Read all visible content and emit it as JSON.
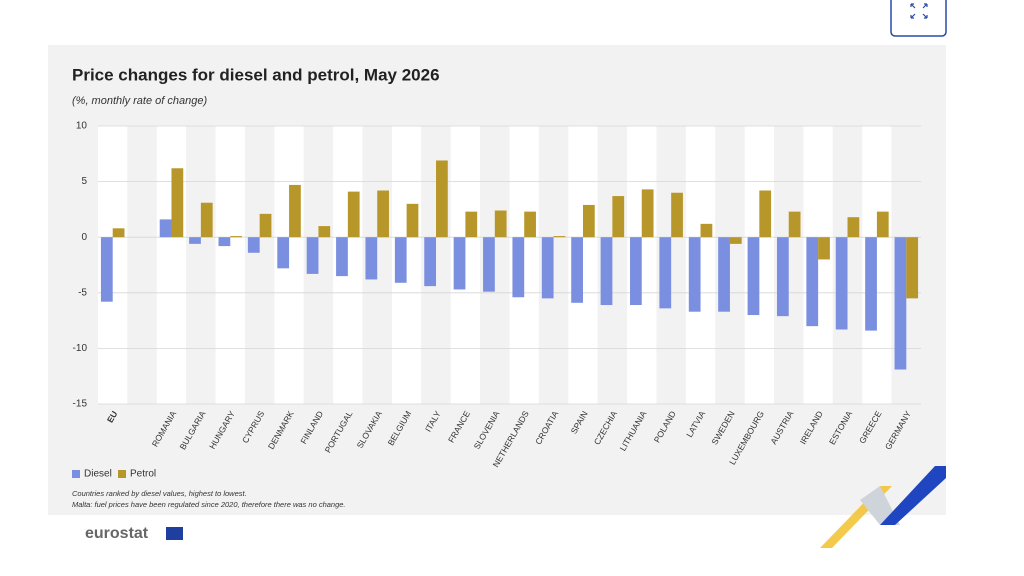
{
  "chart_data": {
    "type": "bar",
    "title": "Price changes for diesel and petrol, May 2026",
    "subtitle": "(%, monthly rate of change)",
    "categories": [
      "EU",
      null,
      "ROMANIA",
      "BULGARIA",
      "HUNGARY",
      "CYPRUS",
      "DENMARK",
      "FINLAND",
      "PORTUGAL",
      "SLOVAKIA",
      "BELGIUM",
      "ITALY",
      "FRANCE",
      "SLOVENIA",
      "NETHERLANDS",
      "CROATIA",
      "SPAIN",
      "CZECHIA",
      "LITHUANIA",
      "POLAND",
      "LATVIA",
      "SWEDEN",
      "LUXEMBOURG",
      "AUSTRIA",
      "IRELAND",
      "ESTONIA",
      "GREECE",
      "GERMANY"
    ],
    "series": [
      {
        "name": "Diesel",
        "color": "#7b8fe0",
        "values": [
          -5.8,
          null,
          1.6,
          -0.6,
          -0.8,
          -1.4,
          -2.8,
          -3.3,
          -3.5,
          -3.8,
          -4.1,
          -4.4,
          -4.7,
          -4.9,
          -5.4,
          -5.5,
          -5.9,
          -6.1,
          -6.1,
          -6.4,
          -6.7,
          -6.7,
          -7.0,
          -7.1,
          -8.0,
          -8.3,
          -8.4,
          -11.9
        ]
      },
      {
        "name": "Petrol",
        "color": "#b8972a",
        "values": [
          0.8,
          null,
          6.2,
          3.1,
          0.1,
          2.1,
          4.7,
          1.0,
          4.1,
          4.2,
          3.0,
          6.9,
          2.3,
          2.4,
          2.3,
          0.1,
          2.9,
          3.7,
          4.3,
          4.0,
          1.2,
          -0.6,
          4.2,
          2.3,
          -2.0,
          1.8,
          2.3,
          -5.5
        ]
      }
    ],
    "ylim": [
      -15,
      10
    ],
    "yticks": [
      -15,
      -10,
      -5,
      0,
      5,
      10
    ],
    "grid": true,
    "notes": [
      "Countries ranked by diesel values, highest to lowest.",
      "Malta: fuel prices have been regulated since 2020, therefore there was no change."
    ]
  },
  "footer": {
    "logo": "eurostat"
  }
}
